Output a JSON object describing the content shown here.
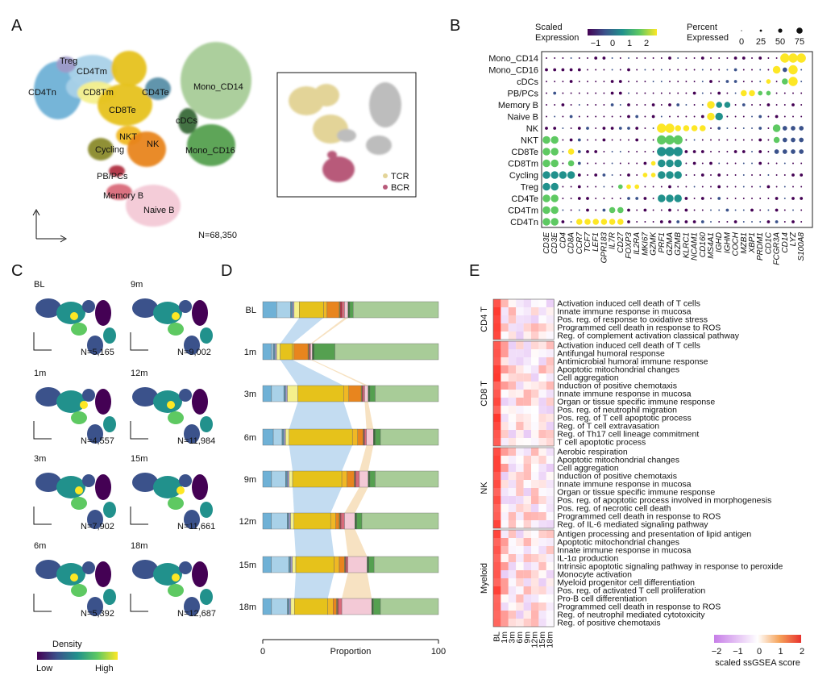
{
  "panels": {
    "A": "A",
    "B": "B",
    "C": "C",
    "D": "D",
    "E": "E"
  },
  "colors": {
    "CD4Tn": "#6fb1d6",
    "CD4Tm": "#a9d1e8",
    "Treg": "#9e9ac8",
    "CD8Tm": "#f5f08c",
    "CD8Te": "#e6c21b",
    "CD4Te": "#5a8fa8",
    "NKT": "#f0b824",
    "NK": "#e8851e",
    "Cycling": "#8a8a2a",
    "PBPCs": "#b03040",
    "MemoryB": "#d96a7a",
    "NaiveB": "#f3c9d6",
    "cDCs": "#3a6a3a",
    "MonoCD16": "#55a050",
    "MonoCD14": "#a8cc98",
    "TCR": "#e3d498",
    "BCR": "#b85a7a",
    "other": "#bdbdbd"
  },
  "panelA": {
    "labels": [
      "Treg",
      "CD4Tm",
      "CD4Tn",
      "CD8Tm",
      "CD4Te",
      "CD8Te",
      "Mono_CD14",
      "NKT",
      "cDCs",
      "Cycling",
      "NK",
      "Mono_CD16",
      "PB/PCs",
      "Memory B",
      "Naive B"
    ],
    "count": "N=68,350",
    "inset_legend": [
      "TCR",
      "BCR"
    ]
  },
  "chart_data": [
    {
      "type": "dotplot",
      "title": "",
      "cell_types": [
        "Mono_CD14",
        "Mono_CD16",
        "cDCs",
        "PB/PCs",
        "Memory B",
        "Naive B",
        "NK",
        "NKT",
        "CD8Te",
        "CD8Tm",
        "Cycling",
        "Treg",
        "CD4Te",
        "CD4Tm",
        "CD4Tn"
      ],
      "genes": [
        "CD3E",
        "CD3E",
        "CD4",
        "CD8A",
        "CCR7",
        "TCF7",
        "LEF1",
        "GPR183",
        "IL7R",
        "CD27",
        "FOXP3",
        "IL2RA",
        "MKI67",
        "GZMK",
        "PRF1",
        "GZMA",
        "GZMB",
        "KLRC1",
        "NCAM1",
        "CD160",
        "MS4A1",
        "IGHD",
        "IGHM",
        "COCH",
        "MZB1",
        "XBP1",
        "PRDM1",
        "CD1C",
        "FCGR3A",
        "CD14",
        "LYZ",
        "S100A8"
      ],
      "legend": {
        "scaled_title": "Scaled\nExpression",
        "scaled_ticks": [
          "−1",
          "0",
          "1",
          "2"
        ],
        "percent_title": "Percent\nExpressed",
        "percent_ticks": [
          "0",
          "25",
          "50",
          "75"
        ]
      },
      "note": "values are scaled expression (-1..2) and percent expressed (0..100) per cell type x gene"
    },
    {
      "type": "stacked_bar",
      "title": "",
      "xlabel": "Proportion",
      "xlim": [
        0,
        100
      ],
      "xticks": [
        "0",
        "100"
      ],
      "categories": [
        "BL",
        "1m",
        "3m",
        "6m",
        "9m",
        "12m",
        "15m",
        "18m"
      ],
      "segment_order": [
        "CD4Tn",
        "CD4Tm",
        "CD4Te",
        "Treg",
        "CD8Tm",
        "CD8Te",
        "NKT",
        "NK",
        "Cycling",
        "PBPCs",
        "MemoryB",
        "NaiveB",
        "cDCs",
        "MonoCD16",
        "MonoCD14"
      ],
      "values": {
        "BL": [
          8,
          8,
          1,
          1,
          3,
          14,
          2,
          7,
          0.5,
          1,
          1.5,
          2,
          1,
          2,
          49
        ],
        "1m": [
          5,
          1,
          1,
          1,
          2,
          7,
          1,
          8,
          0.5,
          0.5,
          0.5,
          1,
          1,
          12,
          59.5
        ],
        "3m": [
          5,
          7,
          1,
          1,
          6,
          26,
          3,
          7,
          0.5,
          0.5,
          1,
          2,
          1,
          3,
          36
        ],
        "6m": [
          6,
          5,
          1,
          1,
          2,
          36,
          3,
          3,
          0.5,
          0.5,
          1,
          4,
          1,
          3,
          33
        ],
        "9m": [
          5,
          8,
          1,
          1,
          2,
          28,
          3,
          4,
          0.5,
          0.5,
          2,
          5,
          1,
          3,
          36
        ],
        "12m": [
          5,
          9,
          1,
          1,
          2,
          21,
          3,
          2,
          0.5,
          0.5,
          2,
          6,
          1,
          3,
          44
        ],
        "15m": [
          5,
          10,
          1,
          1,
          2,
          22,
          3,
          3,
          0.5,
          0.5,
          1,
          11,
          1,
          3,
          37
        ],
        "18m": [
          5,
          9,
          1,
          1,
          2,
          19,
          3,
          2,
          0.5,
          0.5,
          2,
          17,
          1,
          4,
          33
        ]
      }
    },
    {
      "type": "heatmap",
      "title": "",
      "xlabel": "",
      "columns": [
        "BL",
        "1m",
        "3m",
        "6m",
        "9m",
        "12m",
        "15m",
        "18m"
      ],
      "groups": [
        {
          "name": "CD4 T",
          "terms": [
            "Activation induced cell death of T cells",
            "Innate immune response in mucosa",
            "Pos. reg. of response to oxidative stress",
            "Programmed cell death in response to ROS",
            "Reg. of complement activation classical pathway"
          ]
        },
        {
          "name": "CD8 T",
          "terms": [
            "Activation induced cell death of T cells",
            "Antifungal humoral response",
            "Antimicrobial humoral immune response",
            "Apoptotic mitochondrial changes",
            "Cell aggregation",
            "Induction of positive chemotaxis",
            "Innate immune response in mucosa",
            "Organ or tissue specific immune response",
            "Pos. reg. of neutrophil migration",
            "Pos. reg. of T cell apoptotic process",
            "Reg. of T cell extravasation",
            "Reg. of Th17 cell lineage commitment",
            "T cell apoptotic process"
          ]
        },
        {
          "name": "NK",
          "terms": [
            "Aerobic respiration",
            "Apoptotic mitochondrial changes",
            "Cell aggregation",
            "Induction of positive chemotaxis",
            "Innate immune response in mucosa",
            "Organ or tissue specific immune response",
            "Pos. reg. of apoptotic process involved in morphogenesis",
            "Pos. reg. of necrotic cell death",
            "Programmed cell death in response to ROS",
            "Reg. of IL-6 mediated signaling pathway"
          ]
        },
        {
          "name": "Myeloid",
          "terms": [
            "Antigen processing and presentation of lipid antigen",
            "Apoptotic mitochondrial changes",
            "Innate immune response in mucosa",
            "IL-1α production",
            "Intrinsic apoptotic signaling pathway in response to peroxide",
            "Monocyte activation",
            "Myeloid progenitor cell differentiation",
            "Pos. reg. of activated T cell proliferation",
            "Pro-B cell differentiation",
            "Programmed cell death in response to ROS",
            "Reg. of neutrophil mediated cytotoxicity",
            "Reg. of positive chemotaxis"
          ]
        }
      ],
      "legend": {
        "title": "scaled ssGSEA score",
        "ticks": [
          "−2",
          "−1",
          "0",
          "1",
          "2"
        ],
        "range": [
          -2,
          2
        ]
      }
    }
  ],
  "panelC": {
    "panels": [
      {
        "label": "BL",
        "count": "N=5,165"
      },
      {
        "label": "9m",
        "count": "N=9,002"
      },
      {
        "label": "1m",
        "count": "N=4,557"
      },
      {
        "label": "12m",
        "count": "N=11,984"
      },
      {
        "label": "3m",
        "count": "N=7,902"
      },
      {
        "label": "15m",
        "count": "N=11,661"
      },
      {
        "label": "6m",
        "count": "N=5,392"
      },
      {
        "label": "18m",
        "count": "N=12,687"
      }
    ],
    "legend_title": "Density",
    "legend_low": "Low",
    "legend_high": "High"
  }
}
